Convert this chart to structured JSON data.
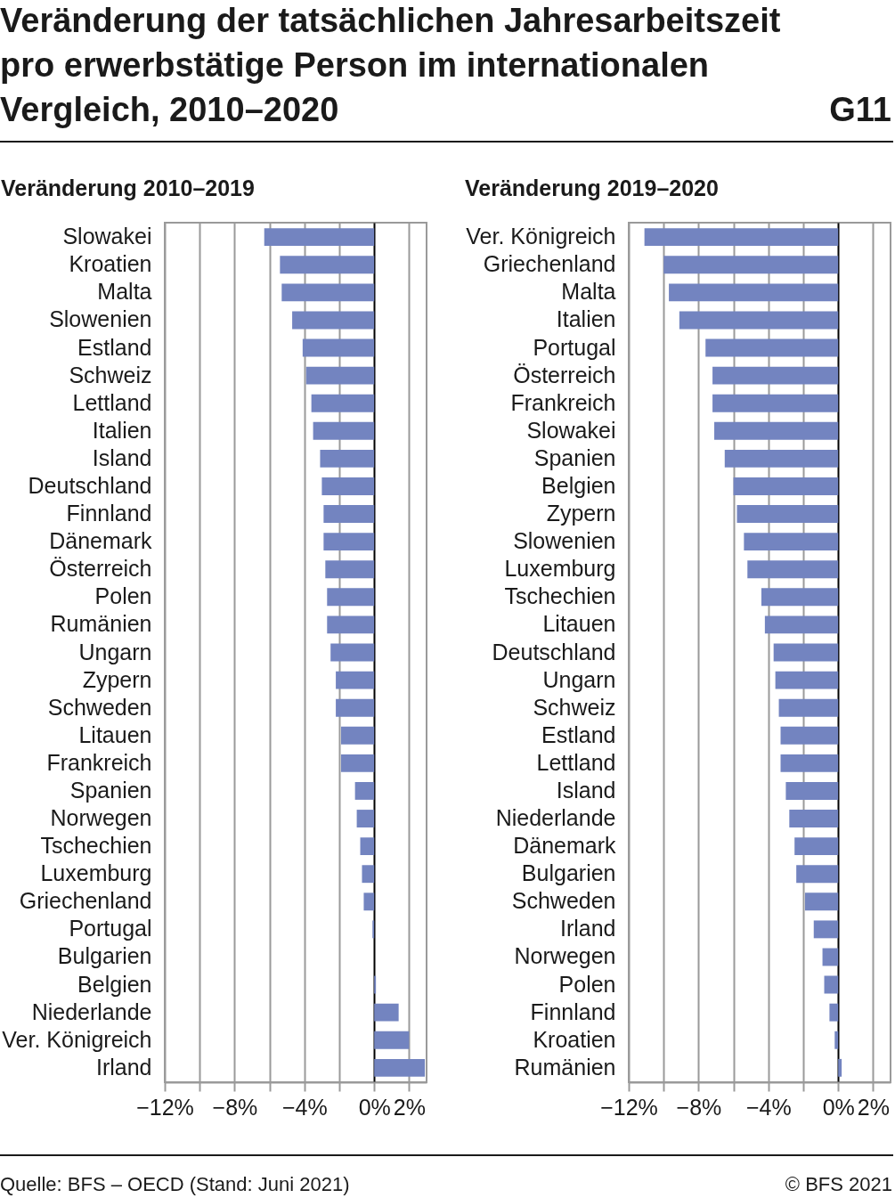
{
  "chart_data": [
    {
      "type": "bar",
      "orientation": "horizontal",
      "title": "Veränderung der tatsächlichen Jahresarbeitszeit pro erwerbstätige Person im internationalen Vergleich, 2010–2020",
      "subtitle": "Veränderung 2010–2019",
      "annotations": [
        "G11",
        "Quelle: BFS – OECD (Stand: Juni 2021)",
        "© BFS 2021"
      ],
      "categories": [
        "Slowakei",
        "Kroatien",
        "Malta",
        "Slowenien",
        "Estland",
        "Schweiz",
        "Lettland",
        "Italien",
        "Island",
        "Deutschland",
        "Finnland",
        "Dänemark",
        "Österreich",
        "Polen",
        "Rumänien",
        "Ungarn",
        "Zypern",
        "Schweden",
        "Litauen",
        "Frankreich",
        "Spanien",
        "Norwegen",
        "Tschechien",
        "Luxemburg",
        "Griechenland",
        "Portugal",
        "Bulgarien",
        "Belgien",
        "Niederlande",
        "Ver. Königreich",
        "Irland"
      ],
      "values": [
        -6.3,
        -5.4,
        -5.3,
        -4.7,
        -4.1,
        -3.9,
        -3.6,
        -3.5,
        -3.1,
        -3.0,
        -2.9,
        -2.9,
        -2.8,
        -2.7,
        -2.7,
        -2.5,
        -2.2,
        -2.2,
        -1.9,
        -1.9,
        -1.1,
        -1.0,
        -0.8,
        -0.7,
        -0.6,
        -0.1,
        0,
        0.1,
        1.4,
        2.0,
        2.9
      ],
      "color": "#7384c0",
      "xlim": [
        -12,
        3
      ],
      "xticks": [
        {
          "value": -12,
          "label": "−12%"
        },
        {
          "value": -10,
          "label": null
        },
        {
          "value": -8,
          "label": "−8%"
        },
        {
          "value": -6,
          "label": null
        },
        {
          "value": -4,
          "label": "−4%"
        },
        {
          "value": -2,
          "label": null
        },
        {
          "value": 0,
          "label": "0%"
        },
        {
          "value": 2,
          "label": "2%"
        }
      ],
      "grid": "x"
    },
    {
      "type": "bar",
      "orientation": "horizontal",
      "subtitle": "Veränderung 2019–2020",
      "categories": [
        "Ver. Königreich",
        "Griechenland",
        "Malta",
        "Italien",
        "Portugal",
        "Österreich",
        "Frankreich",
        "Slowakei",
        "Spanien",
        "Belgien",
        "Zypern",
        "Slowenien",
        "Luxemburg",
        "Tschechien",
        "Litauen",
        "Deutschland",
        "Ungarn",
        "Schweiz",
        "Estland",
        "Lettland",
        "Island",
        "Niederlande",
        "Dänemark",
        "Bulgarien",
        "Schweden",
        "Irland",
        "Norwegen",
        "Polen",
        "Finnland",
        "Kroatien",
        "Rumänien"
      ],
      "values": [
        -11.1,
        -10.0,
        -9.7,
        -9.1,
        -7.6,
        -7.2,
        -7.2,
        -7.1,
        -6.5,
        -6.0,
        -5.8,
        -5.4,
        -5.2,
        -4.4,
        -4.2,
        -3.7,
        -3.6,
        -3.4,
        -3.3,
        -3.3,
        -3.0,
        -2.8,
        -2.5,
        -2.4,
        -1.9,
        -1.4,
        -0.9,
        -0.8,
        -0.5,
        -0.2,
        0.2
      ],
      "color": "#7384c0",
      "xlim": [
        -12,
        3
      ],
      "xticks": [
        {
          "value": -12,
          "label": "−12%"
        },
        {
          "value": -10,
          "label": null
        },
        {
          "value": -8,
          "label": "−8%"
        },
        {
          "value": -6,
          "label": null
        },
        {
          "value": -4,
          "label": "−4%"
        },
        {
          "value": -2,
          "label": null
        },
        {
          "value": 0,
          "label": "0%"
        },
        {
          "value": 2,
          "label": "2%"
        }
      ],
      "grid": "x"
    }
  ]
}
